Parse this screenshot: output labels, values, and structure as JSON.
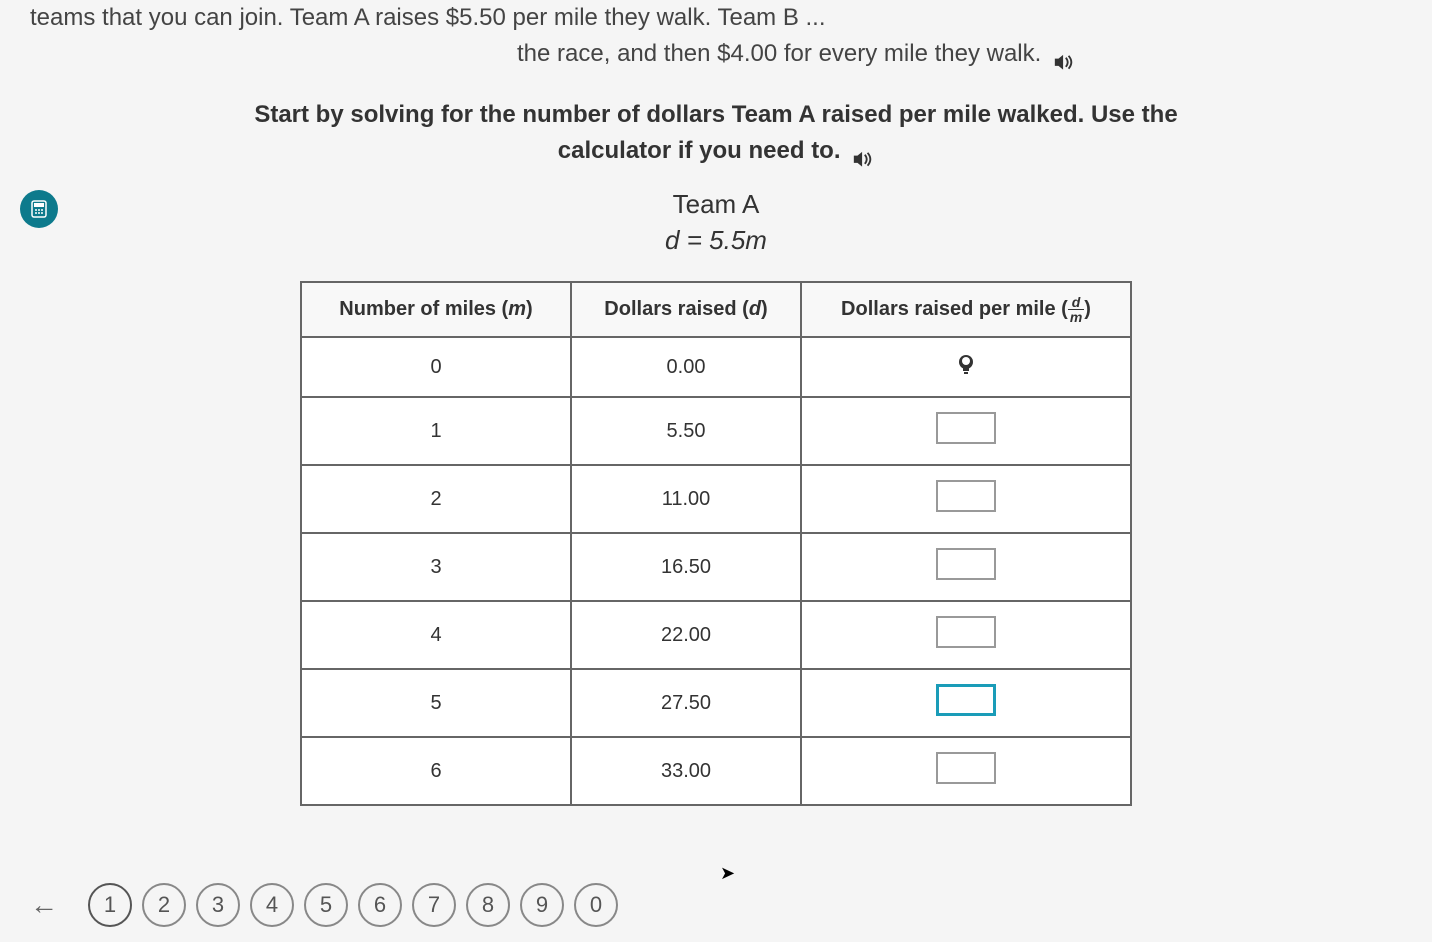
{
  "intro": {
    "line1": "teams that you can join. Team A raises $5.50 per mile they walk. Team B ...",
    "line2": "the race, and then $4.00 for every mile they walk."
  },
  "instruction": {
    "line1": "Start by solving for the number of dollars Team A raised per mile walked. Use the",
    "line2": "calculator if you need to."
  },
  "team": {
    "title": "Team A",
    "formula": "d = 5.5m"
  },
  "table": {
    "headers": {
      "col1_prefix": "Number of miles (",
      "col1_var": "m",
      "col1_suffix": ")",
      "col2_prefix": "Dollars raised (",
      "col2_var": "d",
      "col2_suffix": ")",
      "col3_prefix": "Dollars raised per mile (",
      "col3_num": "d",
      "col3_den": "m",
      "col3_suffix": ")"
    },
    "rows": [
      {
        "m": "0",
        "d": "0.00",
        "input_type": "hint"
      },
      {
        "m": "1",
        "d": "5.50",
        "input_type": "input"
      },
      {
        "m": "2",
        "d": "11.00",
        "input_type": "input"
      },
      {
        "m": "3",
        "d": "16.50",
        "input_type": "input"
      },
      {
        "m": "4",
        "d": "22.00",
        "input_type": "input"
      },
      {
        "m": "5",
        "d": "27.50",
        "input_type": "input_active"
      },
      {
        "m": "6",
        "d": "33.00",
        "input_type": "input"
      }
    ]
  },
  "pagination": {
    "pages": [
      "1",
      "2",
      "3",
      "4",
      "5",
      "6",
      "7",
      "8",
      "9",
      "0"
    ],
    "current": 0
  },
  "colors": {
    "calc_button_bg": "#0d7a8c",
    "active_input_border": "#1a9cb8",
    "text_primary": "#333",
    "border_gray": "#666"
  }
}
